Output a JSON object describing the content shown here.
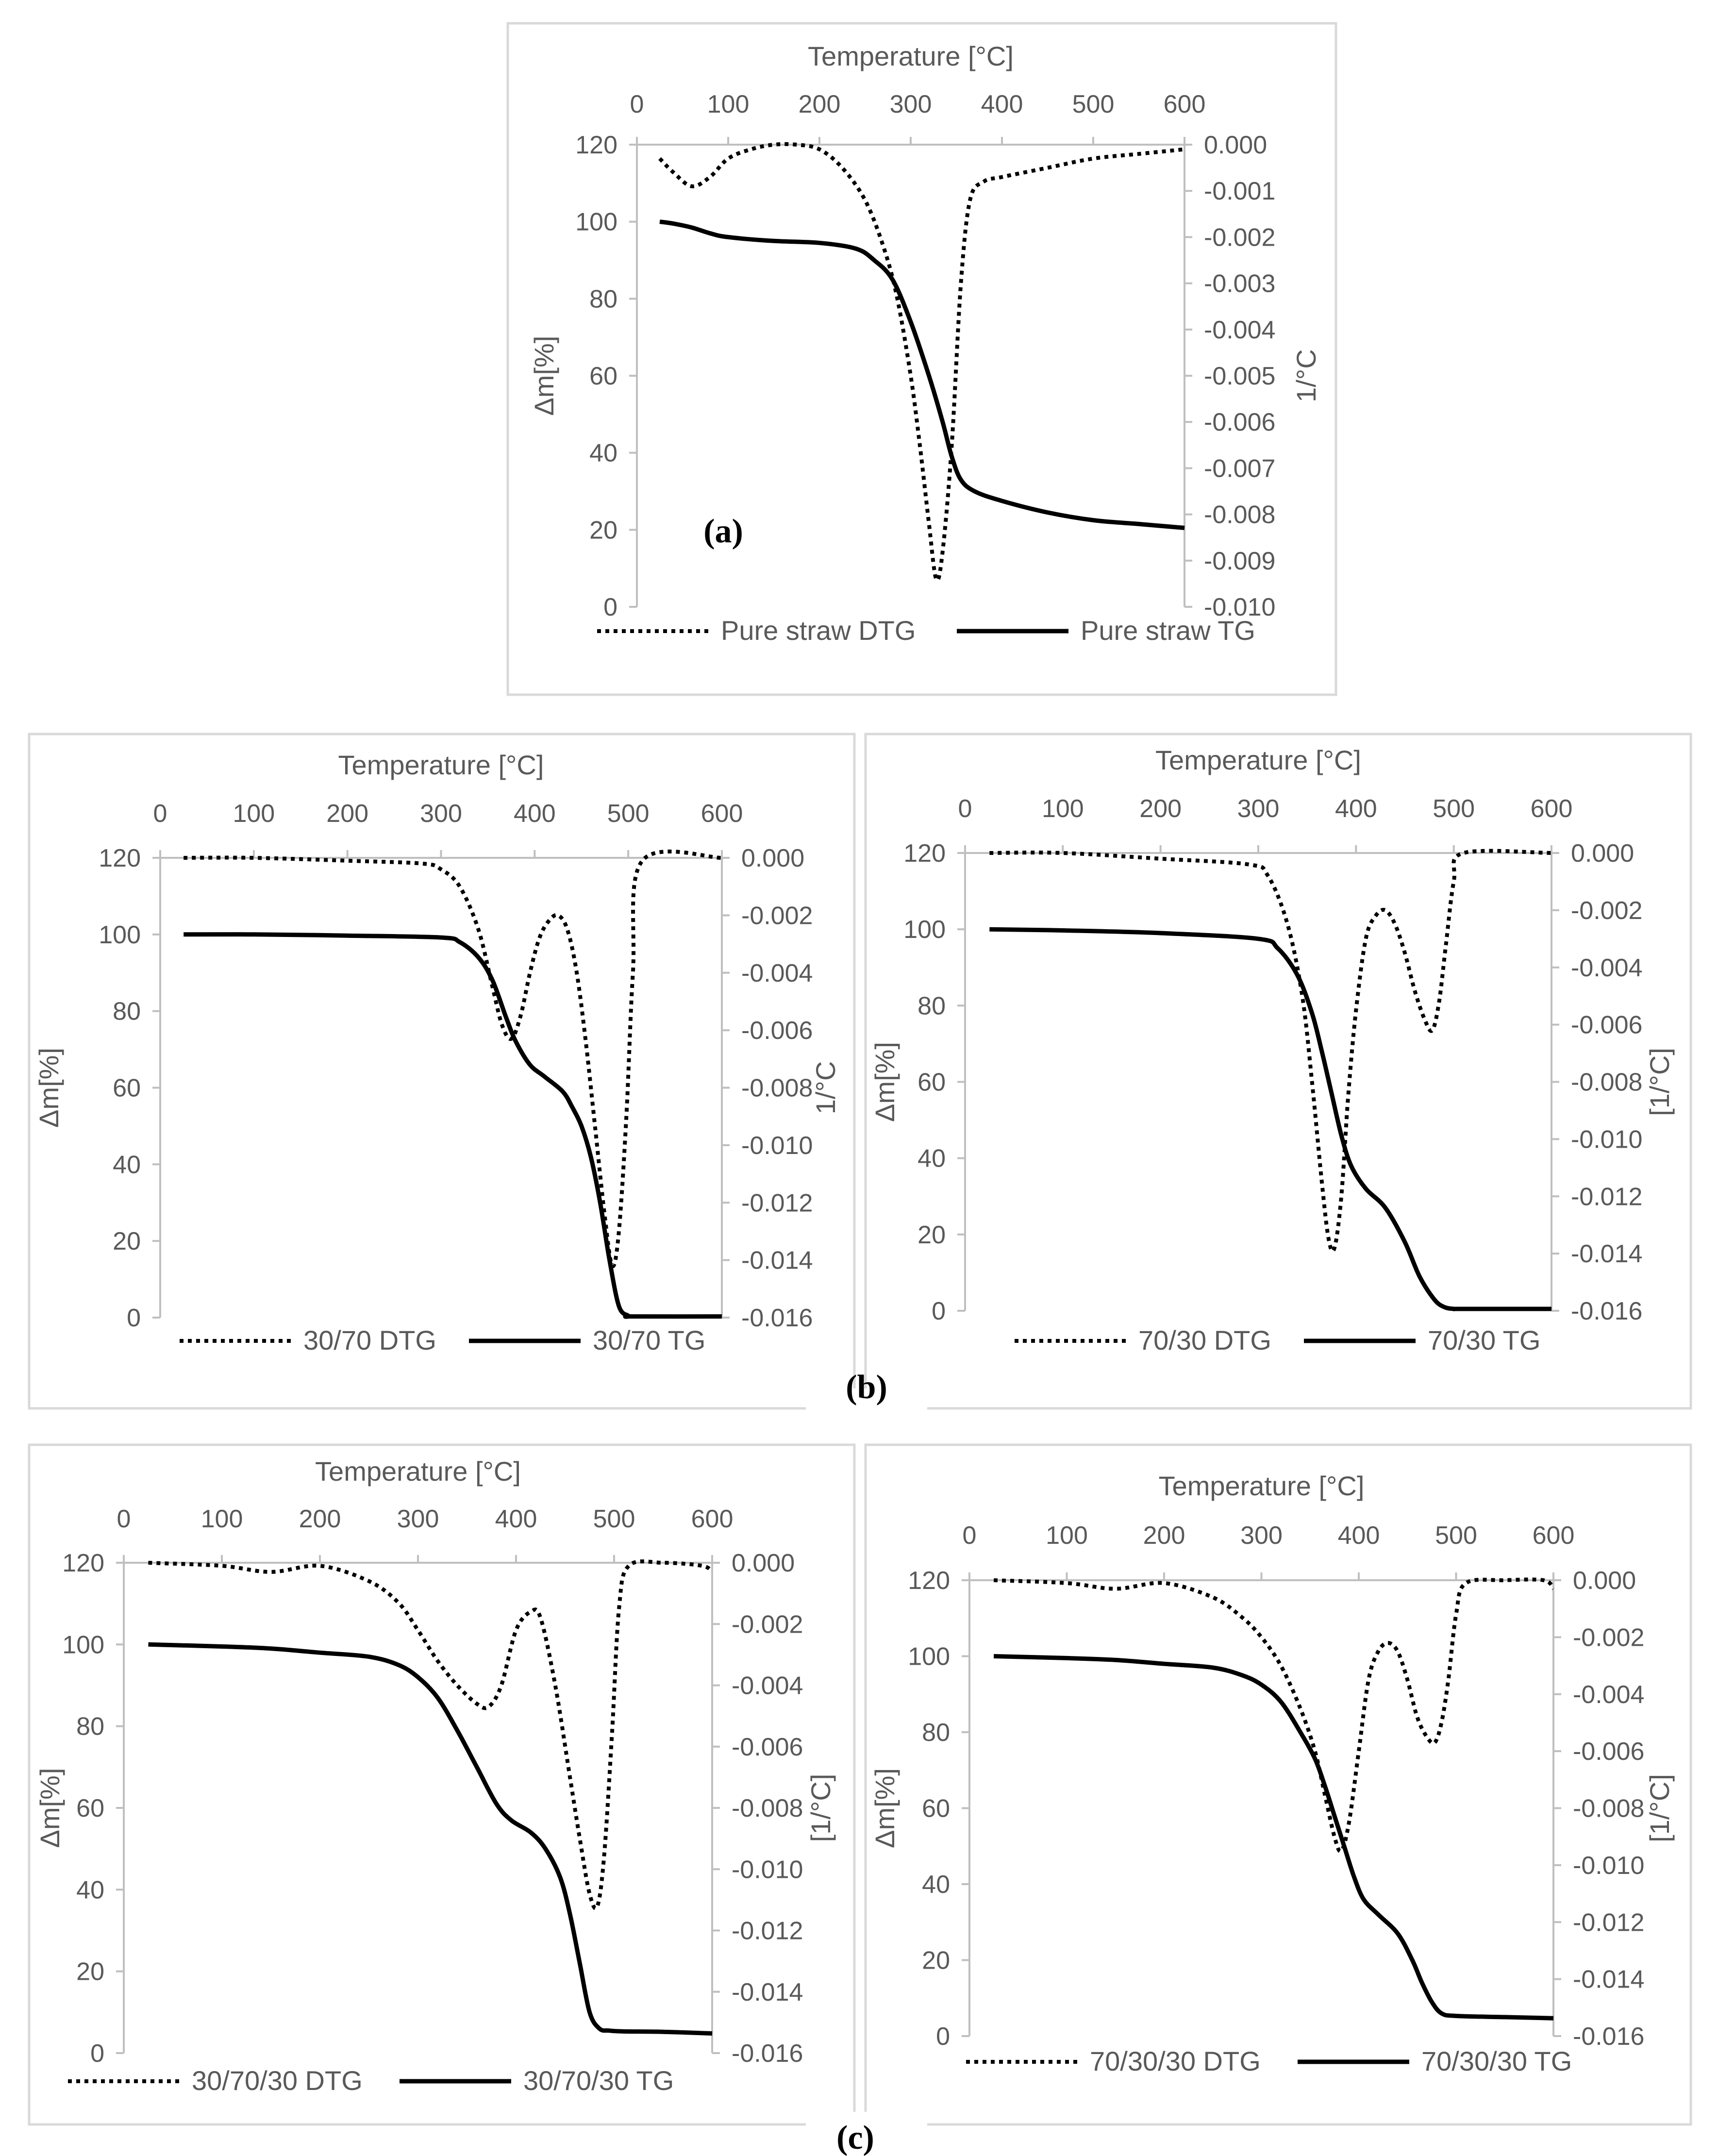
{
  "figure_labels": {
    "a": "(a)",
    "b": "(b)",
    "c": "(c)"
  },
  "chart_data": [
    {
      "id": "a",
      "type": "line",
      "title": "",
      "xlabel": "Temperature [°C]",
      "ylabel": "Δm[%]",
      "y2label": "1/°C",
      "x_ticks": [
        "0",
        "100",
        "200",
        "300",
        "400",
        "500",
        "600"
      ],
      "y_ticks": [
        "0",
        "20",
        "40",
        "60",
        "80",
        "100",
        "120"
      ],
      "y2_ticks": [
        "0.000",
        "-0.001",
        "-0.002",
        "-0.003",
        "-0.004",
        "-0.005",
        "-0.006",
        "-0.007",
        "-0.008",
        "-0.009",
        "-0.010"
      ],
      "xlim": [
        0,
        600
      ],
      "ylim": [
        0,
        120
      ],
      "y2lim": [
        -0.01,
        0.0
      ],
      "grid": false,
      "legend_position": "bottom",
      "colors": {
        "line": "#000000",
        "axis": "#bfbfbf",
        "frame": "#d9d9d9",
        "text": "#595959"
      },
      "series": [
        {
          "name": "Pure straw DTG",
          "axis": "y2",
          "style": "dotted",
          "x": [
            25,
            40,
            60,
            80,
            100,
            125,
            150,
            175,
            200,
            225,
            250,
            270,
            285,
            300,
            310,
            320,
            328,
            335,
            345,
            355,
            365,
            380,
            400,
            450,
            500,
            550,
            600
          ],
          "y": [
            -0.0003,
            -0.0006,
            -0.0009,
            -0.0007,
            -0.0003,
            -0.0001,
            -0.0,
            -0.0,
            -0.0001,
            -0.0005,
            -0.0012,
            -0.0022,
            -0.0033,
            -0.005,
            -0.0065,
            -0.0082,
            -0.0094,
            -0.0088,
            -0.0065,
            -0.003,
            -0.0012,
            -0.0008,
            -0.0007,
            -0.0005,
            -0.0003,
            -0.0002,
            -0.0001
          ]
        },
        {
          "name": "Pure straw TG",
          "axis": "y1",
          "style": "solid",
          "x": [
            25,
            40,
            60,
            80,
            100,
            150,
            200,
            240,
            260,
            280,
            300,
            320,
            335,
            345,
            355,
            370,
            400,
            450,
            500,
            550,
            600
          ],
          "y": [
            100,
            99.5,
            98.5,
            97,
            96,
            95,
            94.5,
            93,
            90,
            85,
            74,
            60,
            48,
            39,
            33,
            30,
            27.5,
            24.5,
            22.5,
            21.5,
            20.5
          ]
        }
      ]
    },
    {
      "id": "b1",
      "type": "line",
      "title": "",
      "xlabel": "Temperature [°C]",
      "ylabel": "Δm[%]",
      "y2label": "1/°C",
      "x_ticks": [
        "0",
        "100",
        "200",
        "300",
        "400",
        "500",
        "600"
      ],
      "y_ticks": [
        "0",
        "20",
        "40",
        "60",
        "80",
        "100",
        "120"
      ],
      "y2_ticks": [
        "0.000",
        "-0.002",
        "-0.004",
        "-0.006",
        "-0.008",
        "-0.010",
        "-0.012",
        "-0.014",
        "-0.016"
      ],
      "xlim": [
        0,
        600
      ],
      "ylim": [
        0,
        120
      ],
      "y2lim": [
        -0.016,
        0.0
      ],
      "grid": false,
      "legend_position": "bottom",
      "colors": {
        "line": "#000000",
        "axis": "#bfbfbf",
        "frame": "#d9d9d9",
        "text": "#595959"
      },
      "series": [
        {
          "name": "30/70 DTG",
          "axis": "y2",
          "style": "dotted",
          "x": [
            25,
            100,
            200,
            280,
            300,
            320,
            340,
            355,
            365,
            375,
            385,
            395,
            405,
            415,
            425,
            435,
            445,
            455,
            465,
            475,
            483,
            490,
            498,
            505,
            515,
            600
          ],
          "y": [
            0,
            0,
            -0.0001,
            -0.0002,
            -0.0004,
            -0.001,
            -0.0025,
            -0.0045,
            -0.0058,
            -0.0063,
            -0.0055,
            -0.004,
            -0.0028,
            -0.0022,
            -0.002,
            -0.0025,
            -0.004,
            -0.0065,
            -0.0095,
            -0.0125,
            -0.0142,
            -0.013,
            -0.009,
            -0.004,
            -0.0001,
            0
          ]
        },
        {
          "name": "30/70 TG",
          "axis": "y1",
          "style": "solid",
          "x": [
            25,
            100,
            200,
            300,
            320,
            340,
            355,
            370,
            380,
            395,
            410,
            430,
            440,
            450,
            460,
            470,
            480,
            490,
            500,
            505,
            600
          ],
          "y": [
            100,
            100,
            99.7,
            99.2,
            98,
            94,
            88,
            78,
            72,
            66,
            63,
            59,
            55,
            50,
            42,
            30,
            15,
            3,
            0.5,
            0.3,
            0.3
          ]
        }
      ]
    },
    {
      "id": "b2",
      "type": "line",
      "title": "",
      "xlabel": "Temperature [°C]",
      "ylabel": "Δm[%]",
      "y2label": "[1/°C]",
      "x_ticks": [
        "0",
        "100",
        "200",
        "300",
        "400",
        "500",
        "600"
      ],
      "y_ticks": [
        "0",
        "20",
        "40",
        "60",
        "80",
        "100",
        "120"
      ],
      "y2_ticks": [
        "0.000",
        "-0.002",
        "-0.004",
        "-0.006",
        "-0.008",
        "-0.010",
        "-0.012",
        "-0.014",
        "-0.016"
      ],
      "xlim": [
        0,
        600
      ],
      "ylim": [
        0,
        120
      ],
      "y2lim": [
        -0.016,
        0.0
      ],
      "grid": false,
      "legend_position": "bottom",
      "colors": {
        "line": "#000000",
        "axis": "#bfbfbf",
        "frame": "#d9d9d9",
        "text": "#595959"
      },
      "series": [
        {
          "name": "70/30 DTG",
          "axis": "y2",
          "style": "dotted",
          "x": [
            25,
            100,
            200,
            290,
            310,
            330,
            345,
            355,
            365,
            372,
            378,
            385,
            392,
            400,
            410,
            420,
            430,
            440,
            450,
            460,
            470,
            478,
            485,
            492,
            500,
            510,
            600
          ],
          "y": [
            0,
            0,
            -0.0002,
            -0.0004,
            -0.0008,
            -0.0025,
            -0.005,
            -0.008,
            -0.0115,
            -0.0135,
            -0.0138,
            -0.012,
            -0.0085,
            -0.0055,
            -0.003,
            -0.0022,
            -0.002,
            -0.0025,
            -0.0035,
            -0.0048,
            -0.0058,
            -0.0062,
            -0.0052,
            -0.0032,
            -0.001,
            0,
            0
          ]
        },
        {
          "name": "70/30 TG",
          "axis": "y1",
          "style": "solid",
          "x": [
            25,
            100,
            200,
            300,
            320,
            340,
            355,
            365,
            375,
            385,
            395,
            410,
            430,
            450,
            465,
            480,
            490,
            500,
            510,
            600
          ],
          "y": [
            100,
            99.7,
            99,
            97.5,
            95,
            88,
            78,
            68,
            57,
            46,
            38,
            32,
            27,
            18,
            9,
            3,
            1,
            0.5,
            0.5,
            0.5
          ]
        }
      ]
    },
    {
      "id": "c1",
      "type": "line",
      "title": "",
      "xlabel": "Temperature [°C]",
      "ylabel": "Δm[%]",
      "y2label": "[1/°C]",
      "x_ticks": [
        "0",
        "100",
        "200",
        "300",
        "400",
        "500",
        "600"
      ],
      "y_ticks": [
        "0",
        "20",
        "40",
        "60",
        "80",
        "100",
        "120"
      ],
      "y2_ticks": [
        "0.000",
        "-0.002",
        "-0.004",
        "-0.006",
        "-0.008",
        "-0.010",
        "-0.012",
        "-0.014",
        "-0.016"
      ],
      "xlim": [
        0,
        600
      ],
      "ylim": [
        0,
        120
      ],
      "y2lim": [
        -0.016,
        0.0
      ],
      "grid": false,
      "legend_position": "bottom",
      "colors": {
        "line": "#000000",
        "axis": "#bfbfbf",
        "frame": "#d9d9d9",
        "text": "#595959"
      },
      "series": [
        {
          "name": "30/70/30 DTG",
          "axis": "y2",
          "style": "dotted",
          "x": [
            25,
            100,
            150,
            200,
            250,
            280,
            300,
            320,
            340,
            360,
            372,
            385,
            400,
            415,
            425,
            440,
            455,
            465,
            475,
            483,
            490,
            498,
            505,
            515,
            550,
            590,
            600
          ],
          "y": [
            0,
            -0.0001,
            -0.0003,
            -0.0001,
            -0.0006,
            -0.0013,
            -0.0022,
            -0.0032,
            -0.004,
            -0.0046,
            -0.0047,
            -0.004,
            -0.0022,
            -0.0016,
            -0.0018,
            -0.004,
            -0.007,
            -0.009,
            -0.0108,
            -0.0112,
            -0.0095,
            -0.0055,
            -0.0015,
            -0.0001,
            0,
            -0.0001,
            -0.0003
          ]
        },
        {
          "name": "30/70/30 TG",
          "axis": "y1",
          "style": "solid",
          "x": [
            25,
            100,
            150,
            200,
            250,
            280,
            300,
            320,
            340,
            360,
            380,
            395,
            415,
            430,
            445,
            455,
            465,
            475,
            485,
            495,
            510,
            550,
            600
          ],
          "y": [
            100,
            99.5,
            99,
            98,
            97,
            95,
            92,
            87,
            79,
            70,
            61,
            57,
            54,
            50,
            43,
            34,
            22,
            10,
            6,
            5.5,
            5.3,
            5.2,
            4.8
          ]
        }
      ]
    },
    {
      "id": "c2",
      "type": "line",
      "title": "",
      "xlabel": "Temperature [°C]",
      "ylabel": "Δm[%]",
      "y2label": "[1/°C]",
      "x_ticks": [
        "0",
        "100",
        "200",
        "300",
        "400",
        "500",
        "600"
      ],
      "y_ticks": [
        "0",
        "20",
        "40",
        "60",
        "80",
        "100",
        "120"
      ],
      "y2_ticks": [
        "0.000",
        "-0.002",
        "-0.004",
        "-0.006",
        "-0.008",
        "-0.010",
        "-0.012",
        "-0.014",
        "-0.016"
      ],
      "xlim": [
        0,
        600
      ],
      "ylim": [
        0,
        120
      ],
      "y2lim": [
        -0.016,
        0.0
      ],
      "grid": false,
      "legend_position": "bottom",
      "colors": {
        "line": "#000000",
        "axis": "#bfbfbf",
        "frame": "#d9d9d9",
        "text": "#595959"
      },
      "series": [
        {
          "name": "70/30/30 DTG",
          "axis": "y2",
          "style": "dotted",
          "x": [
            25,
            100,
            150,
            200,
            250,
            280,
            300,
            320,
            340,
            355,
            365,
            375,
            382,
            390,
            400,
            410,
            420,
            430,
            440,
            450,
            460,
            470,
            478,
            485,
            492,
            500,
            510,
            550,
            590,
            600
          ],
          "y": [
            0,
            -0.0001,
            -0.0003,
            -0.0001,
            -0.0006,
            -0.0013,
            -0.002,
            -0.003,
            -0.0045,
            -0.006,
            -0.0075,
            -0.009,
            -0.0095,
            -0.0085,
            -0.006,
            -0.0035,
            -0.0025,
            -0.0022,
            -0.0025,
            -0.0035,
            -0.0048,
            -0.0055,
            -0.0057,
            -0.005,
            -0.0035,
            -0.0012,
            -0.0001,
            0,
            0,
            -0.0003
          ]
        },
        {
          "name": "70/30/30 TG",
          "axis": "y1",
          "style": "solid",
          "x": [
            25,
            100,
            150,
            200,
            250,
            280,
            300,
            320,
            340,
            355,
            365,
            375,
            385,
            395,
            405,
            420,
            440,
            455,
            465,
            475,
            485,
            500,
            550,
            600
          ],
          "y": [
            100,
            99.5,
            99,
            98,
            97,
            95,
            92.5,
            88,
            80,
            73,
            66,
            58,
            50,
            42,
            36,
            32,
            27,
            20,
            14,
            9,
            6,
            5.3,
            5,
            4.7
          ]
        }
      ]
    }
  ]
}
